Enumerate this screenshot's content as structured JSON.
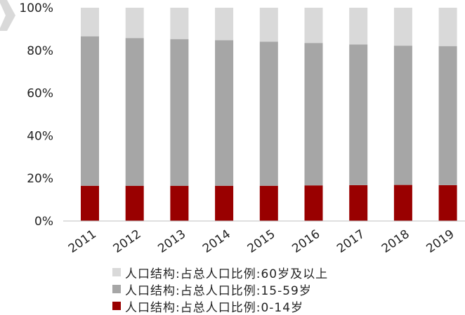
{
  "chart_data": {
    "type": "bar",
    "stacked": true,
    "percent": true,
    "categories": [
      "2011",
      "2012",
      "2013",
      "2014",
      "2015",
      "2016",
      "2017",
      "2018",
      "2019"
    ],
    "series": [
      {
        "name": "人口结构:占总人口比例:0-14岁",
        "color": "#990000",
        "values": [
          16.5,
          16.5,
          16.5,
          16.5,
          16.5,
          16.7,
          16.8,
          16.9,
          16.8
        ]
      },
      {
        "name": "人口结构:占总人口比例:15-59岁",
        "color": "#a6a6a6",
        "values": [
          70.1,
          69.3,
          68.8,
          68.3,
          67.6,
          66.8,
          66.0,
          65.3,
          65.2
        ]
      },
      {
        "name": "人口结构:占总人口比例:60岁及以上",
        "color": "#d9d9d9",
        "values": [
          13.4,
          14.2,
          14.7,
          15.2,
          15.9,
          16.5,
          17.2,
          17.8,
          18.0
        ]
      }
    ],
    "ylim": [
      0,
      100
    ],
    "yticks": [
      "0%",
      "20%",
      "40%",
      "60%",
      "80%",
      "100%"
    ],
    "title": "",
    "xlabel": "",
    "ylabel": "",
    "grid": false,
    "legend_position": "bottom"
  },
  "legend_order": [
    2,
    1,
    0
  ],
  "decoration_color": "#d9d9d9"
}
